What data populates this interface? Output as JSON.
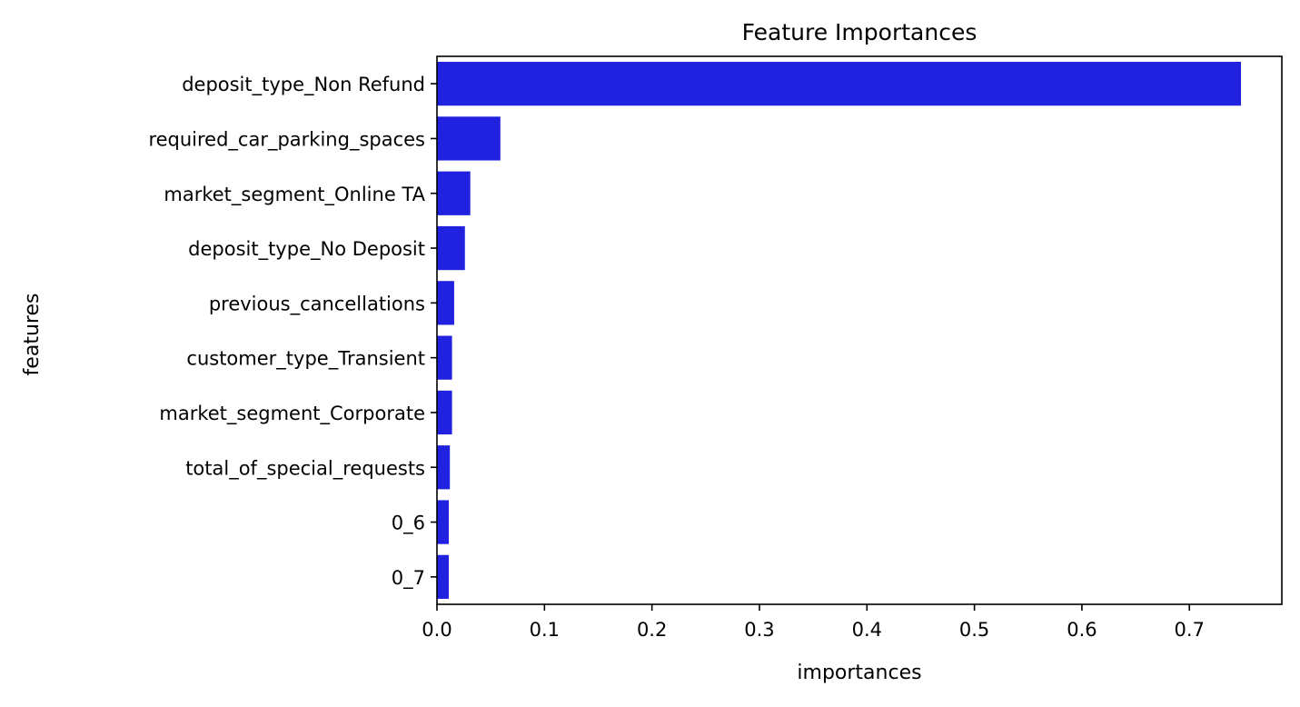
{
  "chart_data": {
    "type": "bar",
    "orientation": "horizontal",
    "title": "Feature Importances",
    "xlabel": "importances",
    "ylabel": "features",
    "categories": [
      "deposit_type_Non Refund",
      "required_car_parking_spaces",
      "market_segment_Online TA",
      "deposit_type_No Deposit",
      "previous_cancellations",
      "customer_type_Transient",
      "market_segment_Corporate",
      "total_of_special_requests",
      "0_6",
      "0_7"
    ],
    "values": [
      0.748,
      0.059,
      0.031,
      0.026,
      0.016,
      0.014,
      0.014,
      0.012,
      0.011,
      0.011
    ],
    "xlim": [
      0,
      0.786
    ],
    "xticks": [
      0.0,
      0.1,
      0.2,
      0.3,
      0.4,
      0.5,
      0.6,
      0.7
    ],
    "xtick_labels": [
      "0.0",
      "0.1",
      "0.2",
      "0.3",
      "0.4",
      "0.5",
      "0.6",
      "0.7"
    ],
    "bar_color": "#2121e0",
    "grid": false,
    "legend": "none"
  }
}
